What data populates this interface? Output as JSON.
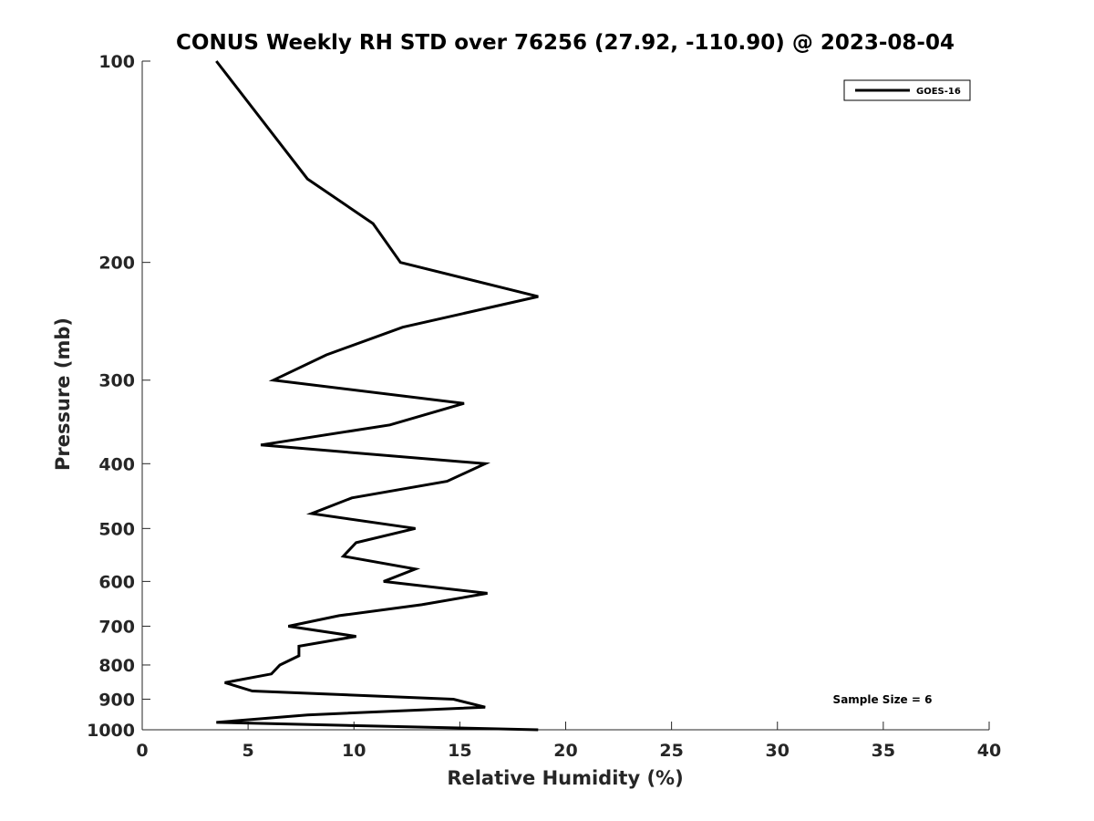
{
  "chart_data": {
    "type": "line",
    "title": "CONUS Weekly RH STD over 76256 (27.92, -110.90) @ 2023-08-04",
    "xlabel": "Relative Humidity (%)",
    "ylabel": "Pressure (mb)",
    "xlim": [
      0,
      40
    ],
    "ylim": [
      100,
      1000
    ],
    "y_scale": "log",
    "y_reversed": true,
    "x_ticks": [
      0,
      5,
      10,
      15,
      20,
      25,
      30,
      35,
      40
    ],
    "x_tick_labels": [
      "0",
      "5",
      "10",
      "15",
      "20",
      "25",
      "30",
      "35",
      "40"
    ],
    "y_ticks": [
      100,
      200,
      300,
      400,
      500,
      600,
      700,
      800,
      900,
      1000
    ],
    "y_tick_labels": [
      "100",
      "200",
      "300",
      "400",
      "500",
      "600",
      "700",
      "800",
      "900",
      "1000"
    ],
    "grid": false,
    "legend_position": "top-right",
    "annotation": "Sample Size = 6",
    "series": [
      {
        "name": "GOES-16",
        "color": "#000000",
        "points": [
          {
            "x": 3.5,
            "p": 100
          },
          {
            "x": 7.8,
            "p": 150
          },
          {
            "x": 10.9,
            "p": 175
          },
          {
            "x": 12.2,
            "p": 200
          },
          {
            "x": 18.7,
            "p": 225
          },
          {
            "x": 12.3,
            "p": 250
          },
          {
            "x": 8.7,
            "p": 275
          },
          {
            "x": 6.2,
            "p": 300
          },
          {
            "x": 15.2,
            "p": 325
          },
          {
            "x": 11.7,
            "p": 350
          },
          {
            "x": 5.6,
            "p": 375
          },
          {
            "x": 16.2,
            "p": 400
          },
          {
            "x": 14.4,
            "p": 425
          },
          {
            "x": 9.9,
            "p": 450
          },
          {
            "x": 8.0,
            "p": 475
          },
          {
            "x": 12.9,
            "p": 500
          },
          {
            "x": 10.1,
            "p": 525
          },
          {
            "x": 9.5,
            "p": 550
          },
          {
            "x": 12.9,
            "p": 575
          },
          {
            "x": 11.4,
            "p": 600
          },
          {
            "x": 16.3,
            "p": 625
          },
          {
            "x": 13.2,
            "p": 650
          },
          {
            "x": 9.3,
            "p": 675
          },
          {
            "x": 6.9,
            "p": 700
          },
          {
            "x": 10.1,
            "p": 725
          },
          {
            "x": 7.4,
            "p": 750
          },
          {
            "x": 7.4,
            "p": 775
          },
          {
            "x": 6.5,
            "p": 800
          },
          {
            "x": 6.1,
            "p": 825
          },
          {
            "x": 3.9,
            "p": 850
          },
          {
            "x": 5.2,
            "p": 875
          },
          {
            "x": 14.7,
            "p": 900
          },
          {
            "x": 16.2,
            "p": 925
          },
          {
            "x": 7.8,
            "p": 950
          },
          {
            "x": 3.5,
            "p": 975
          },
          {
            "x": 18.7,
            "p": 1000
          }
        ]
      }
    ]
  }
}
